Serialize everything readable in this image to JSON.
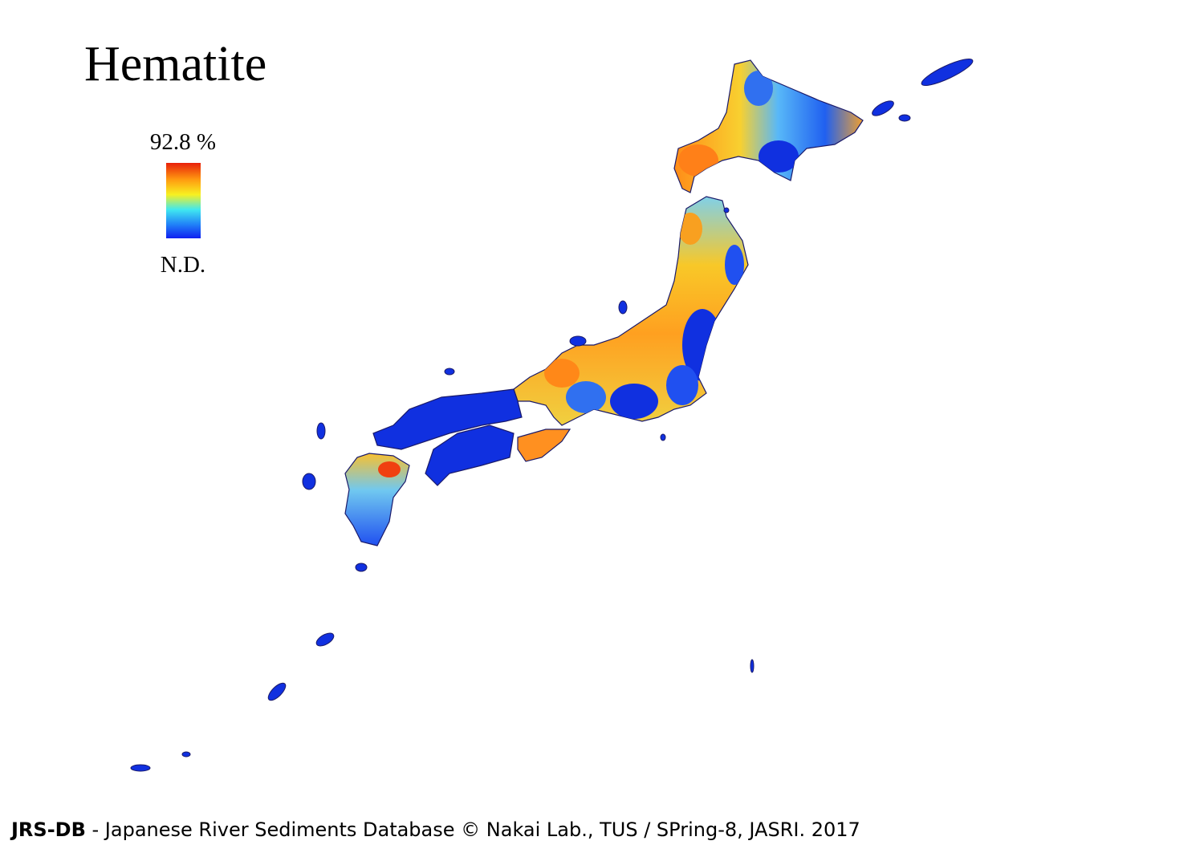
{
  "header": {
    "title": "Hematite"
  },
  "legend": {
    "max_label": "92.8 %",
    "min_label": "N.D."
  },
  "footer": {
    "brand": "JRS-DB",
    "text": " - Japanese River Sediments Database © Nakai Lab., TUS / SPring-8, JASRI. 2017"
  }
}
